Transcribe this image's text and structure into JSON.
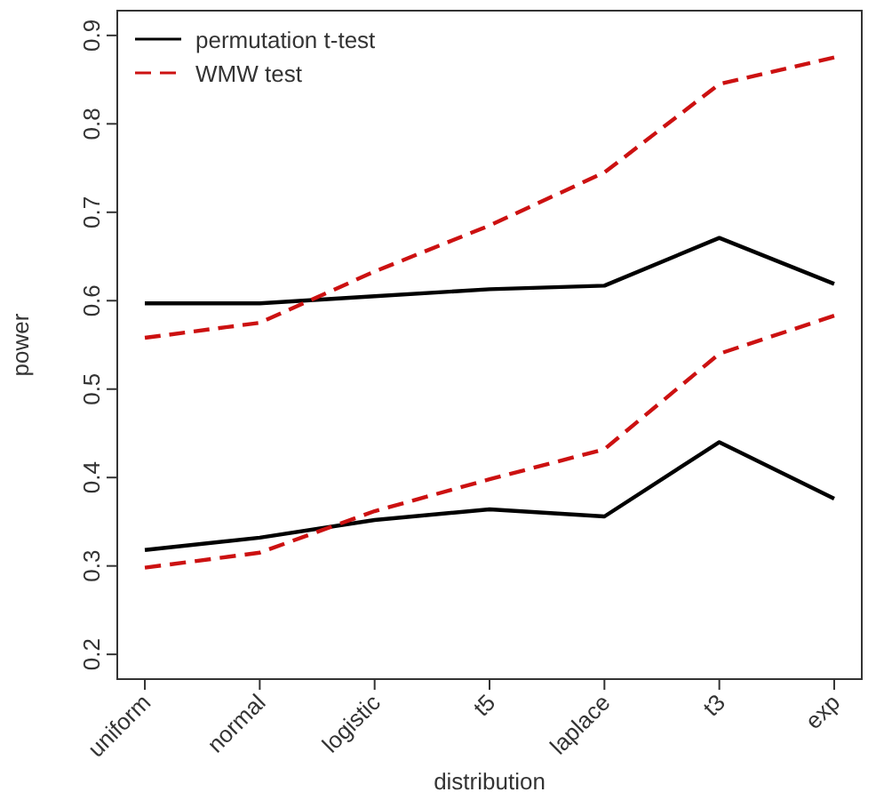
{
  "chart_data": {
    "type": "line",
    "xlabel": "distribution",
    "ylabel": "power",
    "categories": [
      "uniform",
      "normal",
      "logistic",
      "t5",
      "laplace",
      "t3",
      "exp"
    ],
    "ylim": [
      0.172,
      0.928
    ],
    "yticks": [
      {
        "value": 0.2,
        "label": "0.2"
      },
      {
        "value": 0.3,
        "label": "0.3"
      },
      {
        "value": 0.4,
        "label": "0.4"
      },
      {
        "value": 0.5,
        "label": "0.5"
      },
      {
        "value": 0.6,
        "label": "0.6"
      },
      {
        "value": 0.7,
        "label": "0.7"
      },
      {
        "value": 0.8,
        "label": "0.8"
      },
      {
        "value": 0.9,
        "label": "0.9"
      }
    ],
    "grid": false,
    "legend": "top left",
    "marker": "none",
    "series": [
      {
        "name": "permutation t-test",
        "color": "#000000",
        "line_style": "solid",
        "values": [
          0.597,
          0.597,
          0.605,
          0.613,
          0.617,
          0.671,
          0.619
        ]
      },
      {
        "name": "WMW test",
        "color": "#cc1111",
        "line_style": "dashed",
        "values": [
          0.558,
          0.575,
          0.633,
          0.685,
          0.745,
          0.845,
          0.875
        ]
      },
      {
        "color": "#000000",
        "line_style": "solid",
        "values": [
          0.318,
          0.332,
          0.352,
          0.364,
          0.356,
          0.44,
          0.376
        ]
      },
      {
        "color": "#cc1111",
        "line_style": "dashed",
        "values": [
          0.298,
          0.315,
          0.362,
          0.398,
          0.432,
          0.54,
          0.583
        ]
      }
    ]
  }
}
